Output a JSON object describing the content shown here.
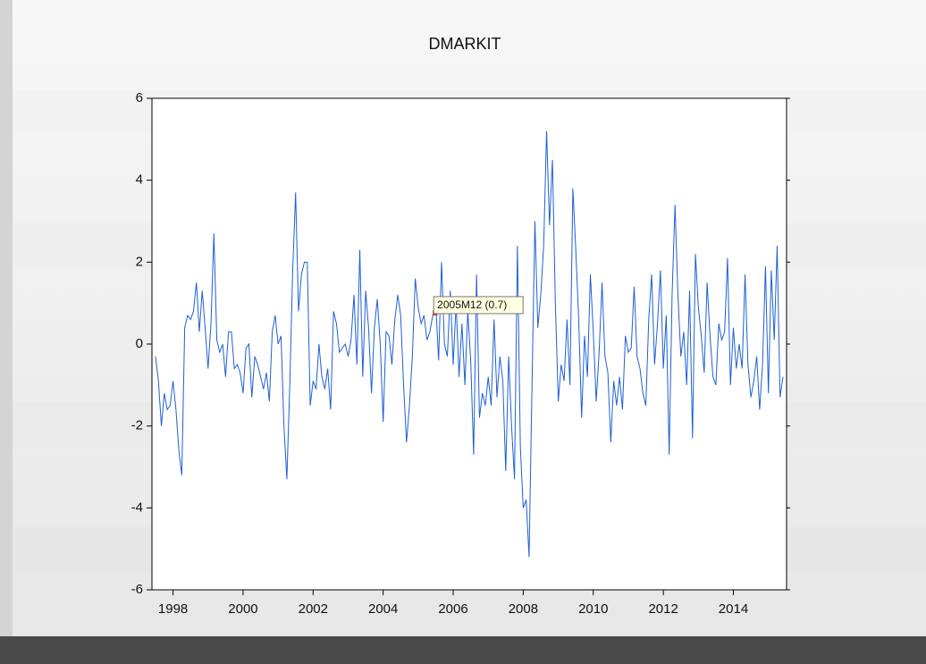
{
  "chart_data": {
    "type": "line",
    "title": "DMARKIT",
    "x": [
      "1998M01",
      "1998M02",
      "1998M03",
      "1998M04",
      "1998M05",
      "1998M06",
      "1998M07",
      "1998M08",
      "1998M09",
      "1998M10",
      "1998M11",
      "1998M12",
      "1999M01",
      "1999M02",
      "1999M03",
      "1999M04",
      "1999M05",
      "1999M06",
      "1999M07",
      "1999M08",
      "1999M09",
      "1999M10",
      "1999M11",
      "1999M12",
      "2000M01",
      "2000M02",
      "2000M03",
      "2000M04",
      "2000M05",
      "2000M06",
      "2000M07",
      "2000M08",
      "2000M09",
      "2000M10",
      "2000M11",
      "2000M12",
      "2001M01",
      "2001M02",
      "2001M03",
      "2001M04",
      "2001M05",
      "2001M06",
      "2001M07",
      "2001M08",
      "2001M09",
      "2001M10",
      "2001M11",
      "2001M12",
      "2002M01",
      "2002M02",
      "2002M03",
      "2002M04",
      "2002M05",
      "2002M06",
      "2002M07",
      "2002M08",
      "2002M09",
      "2002M10",
      "2002M11",
      "2002M12",
      "2003M01",
      "2003M02",
      "2003M03",
      "2003M04",
      "2003M05",
      "2003M06",
      "2003M07",
      "2003M08",
      "2003M09",
      "2003M10",
      "2003M11",
      "2003M12",
      "2004M01",
      "2004M02",
      "2004M03",
      "2004M04",
      "2004M05",
      "2004M06",
      "2004M07",
      "2004M08",
      "2004M09",
      "2004M10",
      "2004M11",
      "2004M12",
      "2005M01",
      "2005M02",
      "2005M03",
      "2005M04",
      "2005M05",
      "2005M06",
      "2005M07",
      "2005M08",
      "2005M09",
      "2005M10",
      "2005M11",
      "2005M12",
      "2006M01",
      "2006M02",
      "2006M03",
      "2006M04",
      "2006M05",
      "2006M06",
      "2006M07",
      "2006M08",
      "2006M09",
      "2006M10",
      "2006M11",
      "2006M12",
      "2007M01",
      "2007M02",
      "2007M03",
      "2007M04",
      "2007M05",
      "2007M06",
      "2007M07",
      "2007M08",
      "2007M09",
      "2007M10",
      "2007M11",
      "2007M12",
      "2008M01",
      "2008M02",
      "2008M03",
      "2008M04",
      "2008M05",
      "2008M06",
      "2008M07",
      "2008M08",
      "2008M09",
      "2008M10",
      "2008M11",
      "2008M12",
      "2009M01",
      "2009M02",
      "2009M03",
      "2009M04",
      "2009M05",
      "2009M06",
      "2009M07",
      "2009M08",
      "2009M09",
      "2009M10",
      "2009M11",
      "2009M12",
      "2010M01",
      "2010M02",
      "2010M03",
      "2010M04",
      "2010M05",
      "2010M06",
      "2010M07",
      "2010M08",
      "2010M09",
      "2010M10",
      "2010M11",
      "2010M12",
      "2011M01",
      "2011M02",
      "2011M03",
      "2011M04",
      "2011M05",
      "2011M06",
      "2011M07",
      "2011M08",
      "2011M09",
      "2011M10",
      "2011M11",
      "2011M12",
      "2012M01",
      "2012M02",
      "2012M03",
      "2012M04",
      "2012M05",
      "2012M06",
      "2012M07",
      "2012M08",
      "2012M09",
      "2012M10",
      "2012M11",
      "2012M12",
      "2013M01",
      "2013M02",
      "2013M03",
      "2013M04",
      "2013M05",
      "2013M06",
      "2013M07",
      "2013M08",
      "2013M09",
      "2013M10",
      "2013M11",
      "2013M12",
      "2014M01",
      "2014M02",
      "2014M03",
      "2014M04",
      "2014M05",
      "2014M06",
      "2014M07",
      "2014M08",
      "2014M09",
      "2014M10",
      "2014M11",
      "2014M12",
      "2015M01",
      "2015M02",
      "2015M03",
      "2015M04",
      "2015M05",
      "2015M06",
      "2015M07",
      "2015M08",
      "2015M09",
      "2015M10",
      "2015M11",
      "2015M12"
    ],
    "values": [
      -0.3,
      -0.9,
      -2.0,
      -1.2,
      -1.6,
      -1.5,
      -0.9,
      -1.6,
      -2.6,
      -3.2,
      0.4,
      0.7,
      0.6,
      0.8,
      1.5,
      0.3,
      1.3,
      0.4,
      -0.6,
      0.5,
      2.7,
      0.1,
      -0.2,
      0.0,
      -0.8,
      0.3,
      0.3,
      -0.6,
      -0.5,
      -0.7,
      -1.2,
      -0.1,
      0.0,
      -1.3,
      -0.3,
      -0.5,
      -0.8,
      -1.1,
      -0.7,
      -1.4,
      0.3,
      0.7,
      0.0,
      0.2,
      -2.0,
      -3.3,
      -1.0,
      1.8,
      3.7,
      0.8,
      1.7,
      2.0,
      2.0,
      -1.5,
      -0.9,
      -1.1,
      0.0,
      -0.8,
      -1.1,
      -0.6,
      -1.6,
      0.8,
      0.5,
      -0.2,
      -0.1,
      0.0,
      -0.3,
      0.1,
      1.2,
      -0.5,
      2.3,
      -0.8,
      1.3,
      0.4,
      -1.2,
      0.4,
      1.1,
      0.0,
      -1.9,
      0.3,
      0.2,
      -0.5,
      0.6,
      1.2,
      0.7,
      -1.0,
      -2.4,
      -1.5,
      -0.3,
      1.6,
      0.9,
      0.5,
      0.7,
      0.1,
      0.3,
      0.7,
      1.0,
      -0.4,
      2.0,
      0.0,
      -0.3,
      1.3,
      -0.5,
      1.0,
      -0.8,
      0.5,
      -1.0,
      0.8,
      -0.4,
      -2.7,
      1.7,
      -1.8,
      -1.2,
      -1.5,
      -0.8,
      -1.5,
      0.6,
      -1.3,
      -0.3,
      -0.9,
      -3.1,
      -0.3,
      -2.0,
      -3.3,
      2.4,
      -2.5,
      -4.0,
      -3.8,
      -5.2,
      -1.0,
      3.0,
      0.4,
      1.2,
      2.4,
      5.2,
      2.9,
      4.5,
      1.0,
      -1.4,
      -0.5,
      -0.9,
      0.6,
      -1.0,
      3.8,
      2.3,
      0.6,
      -1.8,
      0.2,
      -0.8,
      1.7,
      0.3,
      -1.4,
      -0.2,
      1.5,
      -0.3,
      -0.7,
      -2.4,
      -0.9,
      -1.5,
      -0.8,
      -1.6,
      0.2,
      -0.2,
      -0.1,
      1.4,
      -0.3,
      -0.6,
      -1.2,
      -1.5,
      0.6,
      1.7,
      -0.5,
      0.5,
      1.8,
      -0.6,
      0.7,
      -2.7,
      1.2,
      3.4,
      1.2,
      -0.3,
      0.3,
      -1.0,
      1.3,
      -2.3,
      2.2,
      0.9,
      0.2,
      -0.7,
      1.5,
      0.2,
      -0.8,
      -1.0,
      0.5,
      0.1,
      0.3,
      2.1,
      -1.0,
      0.4,
      -0.6,
      0.0,
      -0.6,
      1.7,
      -0.5,
      -1.3,
      -0.9,
      -0.3,
      -1.6,
      -0.5,
      1.9,
      -1.2,
      1.8,
      0.1,
      2.4,
      -1.3,
      -0.8
    ],
    "color": "#1f5fd6",
    "ylim": [
      -6,
      6
    ],
    "yticks": [
      -6,
      -4,
      -2,
      0,
      2,
      4,
      6
    ],
    "xticks": [
      {
        "value": "1998M07",
        "label": "1998"
      },
      {
        "value": "2000M07",
        "label": "2000"
      },
      {
        "value": "2002M07",
        "label": "2002"
      },
      {
        "value": "2004M07",
        "label": "2004"
      },
      {
        "value": "2006M07",
        "label": "2006"
      },
      {
        "value": "2008M07",
        "label": "2008"
      },
      {
        "value": "2010M07",
        "label": "2010"
      },
      {
        "value": "2012M07",
        "label": "2012"
      },
      {
        "value": "2014M07",
        "label": "2014"
      }
    ],
    "annotations": [
      {
        "x": "2005M12",
        "value": 0.7,
        "label": "2005M12  (0.7)"
      }
    ]
  }
}
